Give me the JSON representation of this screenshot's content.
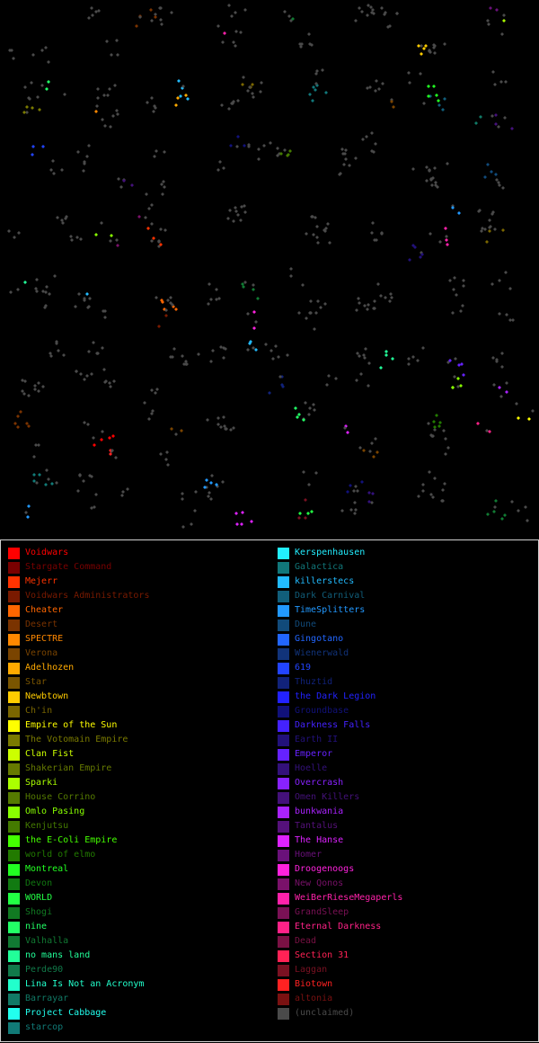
{
  "map": {
    "background": "#000000",
    "unclaimed_color": "#4a4a4a"
  },
  "legend": {
    "left": [
      {
        "name": "Voidwars",
        "color": "#ff0000"
      },
      {
        "name": "Stargate Command",
        "color": "#7a0000"
      },
      {
        "name": "Mejerr",
        "color": "#ff3300"
      },
      {
        "name": "Voidwars Administrators",
        "color": "#7a1a00"
      },
      {
        "name": "Cheater",
        "color": "#ff6600"
      },
      {
        "name": "Desert",
        "color": "#7a3300"
      },
      {
        "name": "SPECTRE",
        "color": "#ff8800"
      },
      {
        "name": "Verona",
        "color": "#7a4400"
      },
      {
        "name": "Adelhozen",
        "color": "#ffaa00"
      },
      {
        "name": "Star",
        "color": "#7a5500"
      },
      {
        "name": "Newbtown",
        "color": "#ffcc00"
      },
      {
        "name": "Ch'in",
        "color": "#7a6600"
      },
      {
        "name": "Empire of the Sun",
        "color": "#ffff00"
      },
      {
        "name": "The Votomain Empire",
        "color": "#7a7a00"
      },
      {
        "name": "Clan Fist",
        "color": "#ccff00"
      },
      {
        "name": "Shakerian Empire",
        "color": "#667a00"
      },
      {
        "name": "Sparki",
        "color": "#aaff00"
      },
      {
        "name": "House Corrino",
        "color": "#557a00"
      },
      {
        "name": "Omlo Pasing",
        "color": "#88ff00"
      },
      {
        "name": "Kenjutsu",
        "color": "#447a00"
      },
      {
        "name": "the E-Coli Empire",
        "color": "#44ff00"
      },
      {
        "name": "world of elmo",
        "color": "#227a00"
      },
      {
        "name": "Montreal",
        "color": "#22ff22"
      },
      {
        "name": "Devon",
        "color": "#117a11"
      },
      {
        "name": "WORLD",
        "color": "#22ff44"
      },
      {
        "name": "Shogi",
        "color": "#117a22"
      },
      {
        "name": "nine",
        "color": "#22ff66"
      },
      {
        "name": "Valhalla",
        "color": "#117a33"
      },
      {
        "name": "no mans land",
        "color": "#22ff99"
      },
      {
        "name": "Perde90",
        "color": "#117a4a"
      },
      {
        "name": "Lina Is Not an Acronym",
        "color": "#22ffcc"
      },
      {
        "name": "Barrayar",
        "color": "#117a66"
      },
      {
        "name": "Project Cabbage",
        "color": "#22ffee"
      },
      {
        "name": "starcop",
        "color": "#117a77"
      }
    ],
    "right": [
      {
        "name": "Kerspenhausen",
        "color": "#22eeff"
      },
      {
        "name": "Galactica",
        "color": "#11777a"
      },
      {
        "name": "killerstecs",
        "color": "#22bbff"
      },
      {
        "name": "Dark Carnival",
        "color": "#115e7a"
      },
      {
        "name": "TimeSplitters",
        "color": "#2299ff"
      },
      {
        "name": "Dune",
        "color": "#114a7a"
      },
      {
        "name": "Gingotano",
        "color": "#2266ff"
      },
      {
        "name": "Wienerwald",
        "color": "#11337a"
      },
      {
        "name": "619",
        "color": "#2244ff"
      },
      {
        "name": "Thuztid",
        "color": "#11227a"
      },
      {
        "name": "the Dark Legion",
        "color": "#2222ff"
      },
      {
        "name": "Groundbase",
        "color": "#11117a"
      },
      {
        "name": "Darkness Falls",
        "color": "#4422ff"
      },
      {
        "name": "Earth II",
        "color": "#22117a"
      },
      {
        "name": "Emperor",
        "color": "#6622ff"
      },
      {
        "name": "Hoelle",
        "color": "#33117a"
      },
      {
        "name": "Overcrash",
        "color": "#8822ff"
      },
      {
        "name": "Omen Killers",
        "color": "#44117a"
      },
      {
        "name": "bunkwania",
        "color": "#aa22ff"
      },
      {
        "name": "Tantalus",
        "color": "#55117a"
      },
      {
        "name": "The Hanse",
        "color": "#dd22ff"
      },
      {
        "name": "Homer",
        "color": "#6a117a"
      },
      {
        "name": "Droogenoogs",
        "color": "#ff22dd"
      },
      {
        "name": "New Qonos",
        "color": "#7a116a"
      },
      {
        "name": "WeiBerRieseMegaperls",
        "color": "#ff22aa"
      },
      {
        "name": "GrandSleep",
        "color": "#7a1155"
      },
      {
        "name": "Eternal Darkness",
        "color": "#ff2288"
      },
      {
        "name": "Dead",
        "color": "#7a1144"
      },
      {
        "name": "Section 31",
        "color": "#ff2255"
      },
      {
        "name": "Laggan",
        "color": "#7a1122"
      },
      {
        "name": "Biotown",
        "color": "#ff2222"
      },
      {
        "name": "altonia",
        "color": "#7a1111"
      },
      {
        "name": "(unclaimed)",
        "color": "#4a4a4a"
      }
    ]
  }
}
